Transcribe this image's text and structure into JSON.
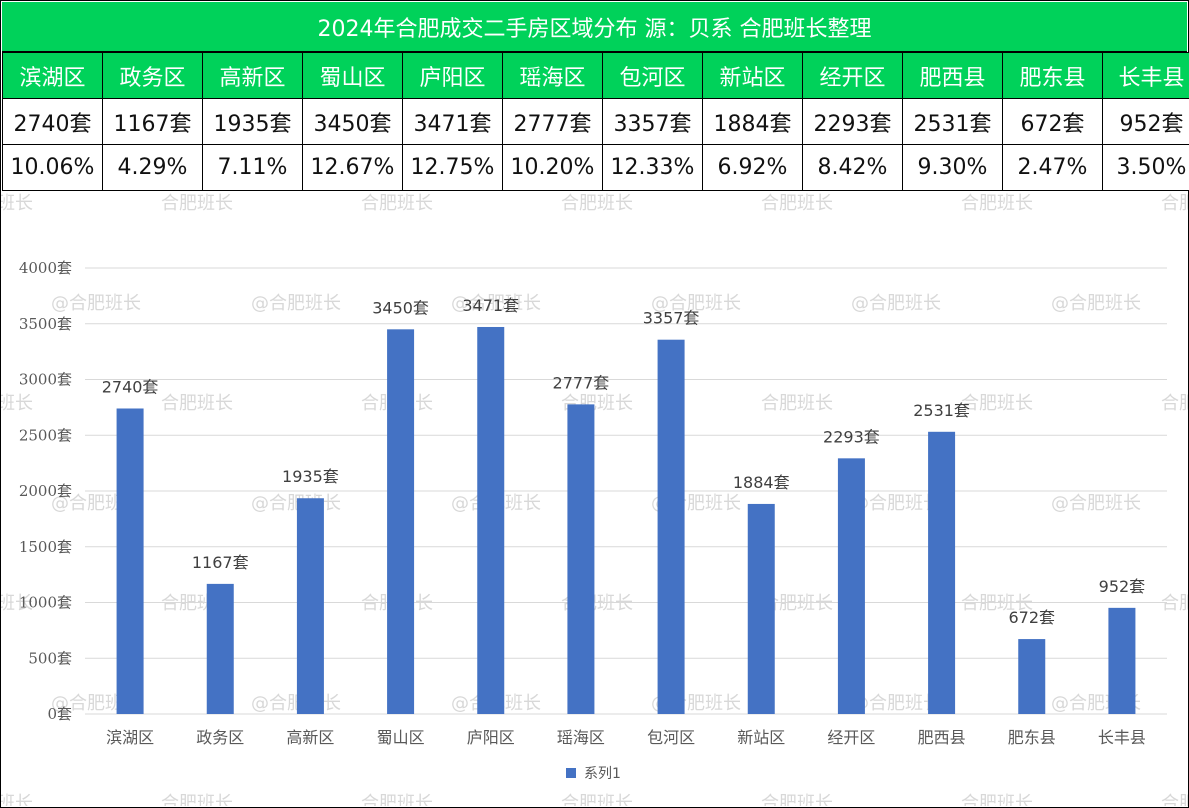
{
  "title": "2024年合肥成交二手房区域分布 源：贝系 合肥班长整理",
  "watermark": "@合肥班长",
  "watermark_alt": "合肥班长",
  "colors": {
    "header_green": "#00d25a",
    "bar_blue": "#4472c4",
    "grid": "#d9d9d9"
  },
  "table": {
    "districts": [
      "滨湖区",
      "政务区",
      "高新区",
      "蜀山区",
      "庐阳区",
      "瑶海区",
      "包河区",
      "新站区",
      "经开区",
      "肥西县",
      "肥东县",
      "长丰县"
    ],
    "counts": [
      "2740套",
      "1167套",
      "1935套",
      "3450套",
      "3471套",
      "2777套",
      "3357套",
      "1884套",
      "2293套",
      "2531套",
      "672套",
      "952套"
    ],
    "percents": [
      "10.06%",
      "4.29%",
      "7.11%",
      "12.67%",
      "12.75%",
      "10.20%",
      "12.33%",
      "6.92%",
      "8.42%",
      "9.30%",
      "2.47%",
      "3.50%"
    ]
  },
  "chart_data": {
    "type": "bar",
    "categories": [
      "滨湖区",
      "政务区",
      "高新区",
      "蜀山区",
      "庐阳区",
      "瑶海区",
      "包河区",
      "新站区",
      "经开区",
      "肥西县",
      "肥东县",
      "长丰县"
    ],
    "series": [
      {
        "name": "系列1",
        "values": [
          2740,
          1167,
          1935,
          3450,
          3471,
          2777,
          3357,
          1884,
          2293,
          2531,
          672,
          952
        ]
      }
    ],
    "data_labels": [
      "2740套",
      "1167套",
      "1935套",
      "3450套",
      "3471套",
      "2777套",
      "3357套",
      "1884套",
      "2293套",
      "2531套",
      "672套",
      "952套"
    ],
    "y_ticks": [
      "0套",
      "500套",
      "1000套",
      "1500套",
      "2000套",
      "2500套",
      "3000套",
      "3500套",
      "4000套"
    ],
    "ylim": [
      0,
      4000
    ],
    "y_step": 500,
    "grid": true,
    "legend_position": "bottom"
  }
}
